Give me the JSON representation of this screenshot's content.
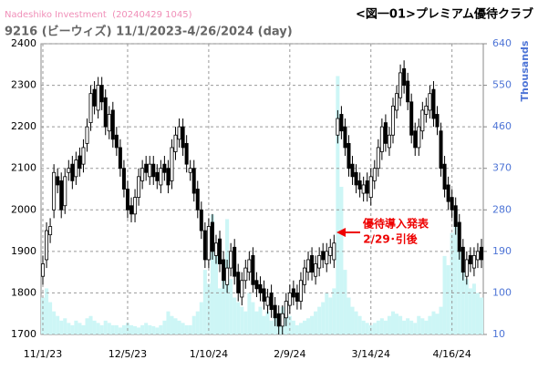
{
  "chart_data": {
    "type": "candlestick",
    "source": "Nadeshiko Investment  (20240429 1045)",
    "title": "<図一01>プレミアム優待クラブ",
    "subtitle": "9216 (ビーウィズ) 11/1/2023-4/26/2024 (day)",
    "y2_label": "Thousands",
    "annotations": [
      "優待導入発表",
      "2/29･引後"
    ],
    "categories": [
      "11/1/23",
      null,
      null,
      null,
      null,
      null,
      null,
      null,
      null,
      null,
      null,
      null,
      null,
      null,
      null,
      null,
      null,
      null,
      null,
      null,
      null,
      null,
      null,
      "12/5/23",
      null,
      null,
      null,
      null,
      null,
      null,
      null,
      null,
      null,
      null,
      null,
      null,
      null,
      null,
      null,
      null,
      null,
      null,
      null,
      null,
      null,
      "1/10/24",
      null,
      null,
      null,
      null,
      null,
      null,
      null,
      null,
      null,
      null,
      null,
      null,
      null,
      null,
      null,
      null,
      null,
      null,
      null,
      null,
      null,
      "2/9/24",
      null,
      null,
      null,
      null,
      null,
      null,
      null,
      null,
      null,
      null,
      null,
      null,
      null,
      null,
      null,
      null,
      null,
      null,
      null,
      null,
      null,
      "3/14/24",
      null,
      null,
      null,
      null,
      null,
      null,
      null,
      null,
      null,
      null,
      null,
      null,
      null,
      null,
      null,
      null,
      null,
      null,
      null,
      null,
      null,
      "4/16/24",
      null,
      null,
      null,
      null,
      null,
      null,
      null,
      null
    ],
    "open": [
      1840,
      1880,
      1940,
      2000,
      2080,
      2070,
      2010,
      2090,
      2110,
      2080,
      2130,
      2110,
      2160,
      2210,
      2290,
      2240,
      2300,
      2270,
      2190,
      2240,
      2180,
      2150,
      2100,
      2050,
      2010,
      1990,
      2030,
      2070,
      2110,
      2080,
      2110,
      2090,
      2060,
      2110,
      2100,
      2070,
      2140,
      2170,
      2200,
      2160,
      2090,
      2100,
      2050,
      2000,
      1950,
      1880,
      1970,
      1890,
      1930,
      1880,
      1820,
      1860,
      1910,
      1850,
      1790,
      1830,
      1850,
      1890,
      1830,
      1820,
      1810,
      1770,
      1800,
      1770,
      1750,
      1720,
      1740,
      1770,
      1810,
      1800,
      1780,
      1820,
      1850,
      1890,
      1840,
      1860,
      1900,
      1870,
      1890,
      1880,
      2180,
      2230,
      2200,
      2160,
      2110,
      2090,
      2070,
      2040,
      2070,
      2030,
      2070,
      2100,
      2140,
      2210,
      2150,
      2180,
      2240,
      2270,
      2340,
      2310,
      2260,
      2190,
      2150,
      2190,
      2230,
      2240,
      2290,
      2230,
      2190,
      2110,
      2060,
      2030,
      2010,
      1970,
      1910,
      1840,
      1890,
      1860,
      1880,
      1910
    ],
    "high": [
      1890,
      1970,
      1980,
      2110,
      2100,
      2090,
      2100,
      2120,
      2130,
      2140,
      2150,
      2170,
      2220,
      2300,
      2310,
      2320,
      2320,
      2290,
      2250,
      2260,
      2200,
      2170,
      2120,
      2070,
      2030,
      2050,
      2100,
      2120,
      2130,
      2130,
      2130,
      2110,
      2120,
      2130,
      2120,
      2170,
      2200,
      2220,
      2220,
      2180,
      2120,
      2120,
      2070,
      2020,
      1970,
      1980,
      1990,
      1940,
      1950,
      1900,
      1880,
      1920,
      1930,
      1870,
      1850,
      1880,
      1900,
      1910,
      1850,
      1840,
      1830,
      1810,
      1820,
      1790,
      1770,
      1770,
      1800,
      1820,
      1830,
      1820,
      1850,
      1880,
      1900,
      1910,
      1890,
      1910,
      1920,
      1920,
      1930,
      1940,
      2240,
      2250,
      2220,
      2180,
      2130,
      2110,
      2090,
      2080,
      2090,
      2100,
      2120,
      2170,
      2220,
      2230,
      2200,
      2270,
      2300,
      2350,
      2360,
      2330,
      2280,
      2210,
      2220,
      2260,
      2270,
      2300,
      2310,
      2250,
      2210,
      2130,
      2080,
      2050,
      2030,
      1990,
      1930,
      1900,
      1910,
      1910,
      1920,
      1930
    ],
    "low": [
      1820,
      1860,
      1920,
      1980,
      2040,
      1980,
      1990,
      2070,
      2050,
      2060,
      2080,
      2090,
      2140,
      2190,
      2230,
      2220,
      2240,
      2180,
      2170,
      2150,
      2130,
      2080,
      2030,
      1980,
      1970,
      1970,
      2010,
      2050,
      2070,
      2060,
      2060,
      2050,
      2040,
      2070,
      2040,
      2050,
      2120,
      2150,
      2130,
      2090,
      2070,
      2020,
      1980,
      1930,
      1860,
      1860,
      1880,
      1870,
      1850,
      1810,
      1800,
      1840,
      1820,
      1780,
      1770,
      1810,
      1830,
      1800,
      1790,
      1780,
      1760,
      1750,
      1740,
      1720,
      1700,
      1700,
      1720,
      1750,
      1770,
      1760,
      1760,
      1800,
      1830,
      1830,
      1820,
      1840,
      1860,
      1850,
      1870,
      1860,
      2160,
      2170,
      2130,
      2080,
      2060,
      2040,
      2030,
      2020,
      2020,
      2010,
      2050,
      2080,
      2120,
      2140,
      2130,
      2160,
      2220,
      2250,
      2280,
      2240,
      2160,
      2130,
      2130,
      2170,
      2210,
      2220,
      2200,
      2180,
      2080,
      2030,
      2000,
      1980,
      1940,
      1880,
      1830,
      1820,
      1850,
      1840,
      1860,
      1860
    ],
    "close": [
      1870,
      1950,
      1960,
      2090,
      2060,
      2000,
      2080,
      2100,
      2070,
      2120,
      2100,
      2150,
      2200,
      2280,
      2250,
      2300,
      2260,
      2200,
      2230,
      2170,
      2150,
      2100,
      2050,
      2000,
      1990,
      2030,
      2080,
      2100,
      2090,
      2110,
      2080,
      2070,
      2100,
      2090,
      2060,
      2150,
      2180,
      2200,
      2150,
      2110,
      2100,
      2040,
      2000,
      1950,
      1880,
      1960,
      1900,
      1920,
      1870,
      1830,
      1860,
      1900,
      1840,
      1800,
      1830,
      1860,
      1880,
      1820,
      1810,
      1800,
      1780,
      1790,
      1760,
      1740,
      1720,
      1750,
      1780,
      1800,
      1790,
      1780,
      1830,
      1860,
      1880,
      1850,
      1870,
      1890,
      1880,
      1900,
      1910,
      1920,
      2220,
      2190,
      2150,
      2100,
      2080,
      2060,
      2050,
      2060,
      2040,
      2080,
      2100,
      2150,
      2200,
      2160,
      2180,
      2250,
      2280,
      2330,
      2300,
      2260,
      2180,
      2150,
      2200,
      2240,
      2250,
      2280,
      2220,
      2200,
      2100,
      2050,
      2020,
      2000,
      1960,
      1900,
      1850,
      1880,
      1870,
      1890,
      1900,
      1880
    ],
    "volume": [
      90,
      110,
      80,
      60,
      50,
      40,
      45,
      35,
      30,
      40,
      35,
      30,
      45,
      50,
      40,
      35,
      30,
      40,
      35,
      30,
      30,
      25,
      30,
      35,
      30,
      28,
      25,
      30,
      35,
      30,
      28,
      25,
      30,
      40,
      60,
      50,
      45,
      40,
      35,
      30,
      30,
      50,
      60,
      80,
      150,
      120,
      270,
      180,
      110,
      150,
      260,
      130,
      90,
      80,
      70,
      60,
      100,
      80,
      60,
      70,
      50,
      60,
      40,
      50,
      45,
      70,
      60,
      50,
      40,
      30,
      35,
      40,
      45,
      50,
      60,
      70,
      80,
      100,
      90,
      110,
      570,
      330,
      150,
      90,
      70,
      60,
      50,
      40,
      35,
      30,
      35,
      40,
      45,
      40,
      50,
      60,
      55,
      50,
      40,
      45,
      40,
      35,
      50,
      45,
      40,
      50,
      60,
      55,
      70,
      180,
      160,
      230,
      280,
      200,
      150,
      130,
      110,
      120,
      100,
      90
    ],
    "up_color": "#ffffff",
    "down_color": "#000000",
    "volume_color": "#cdf6f6",
    "ylim": [
      1700,
      2400
    ],
    "yticks": [
      1700,
      1800,
      1900,
      2000,
      2100,
      2200,
      2300,
      2400
    ],
    "y2lim": [
      10,
      640
    ],
    "y2ticks": [
      10,
      100,
      190,
      280,
      370,
      460,
      550,
      640
    ],
    "grid": true
  }
}
